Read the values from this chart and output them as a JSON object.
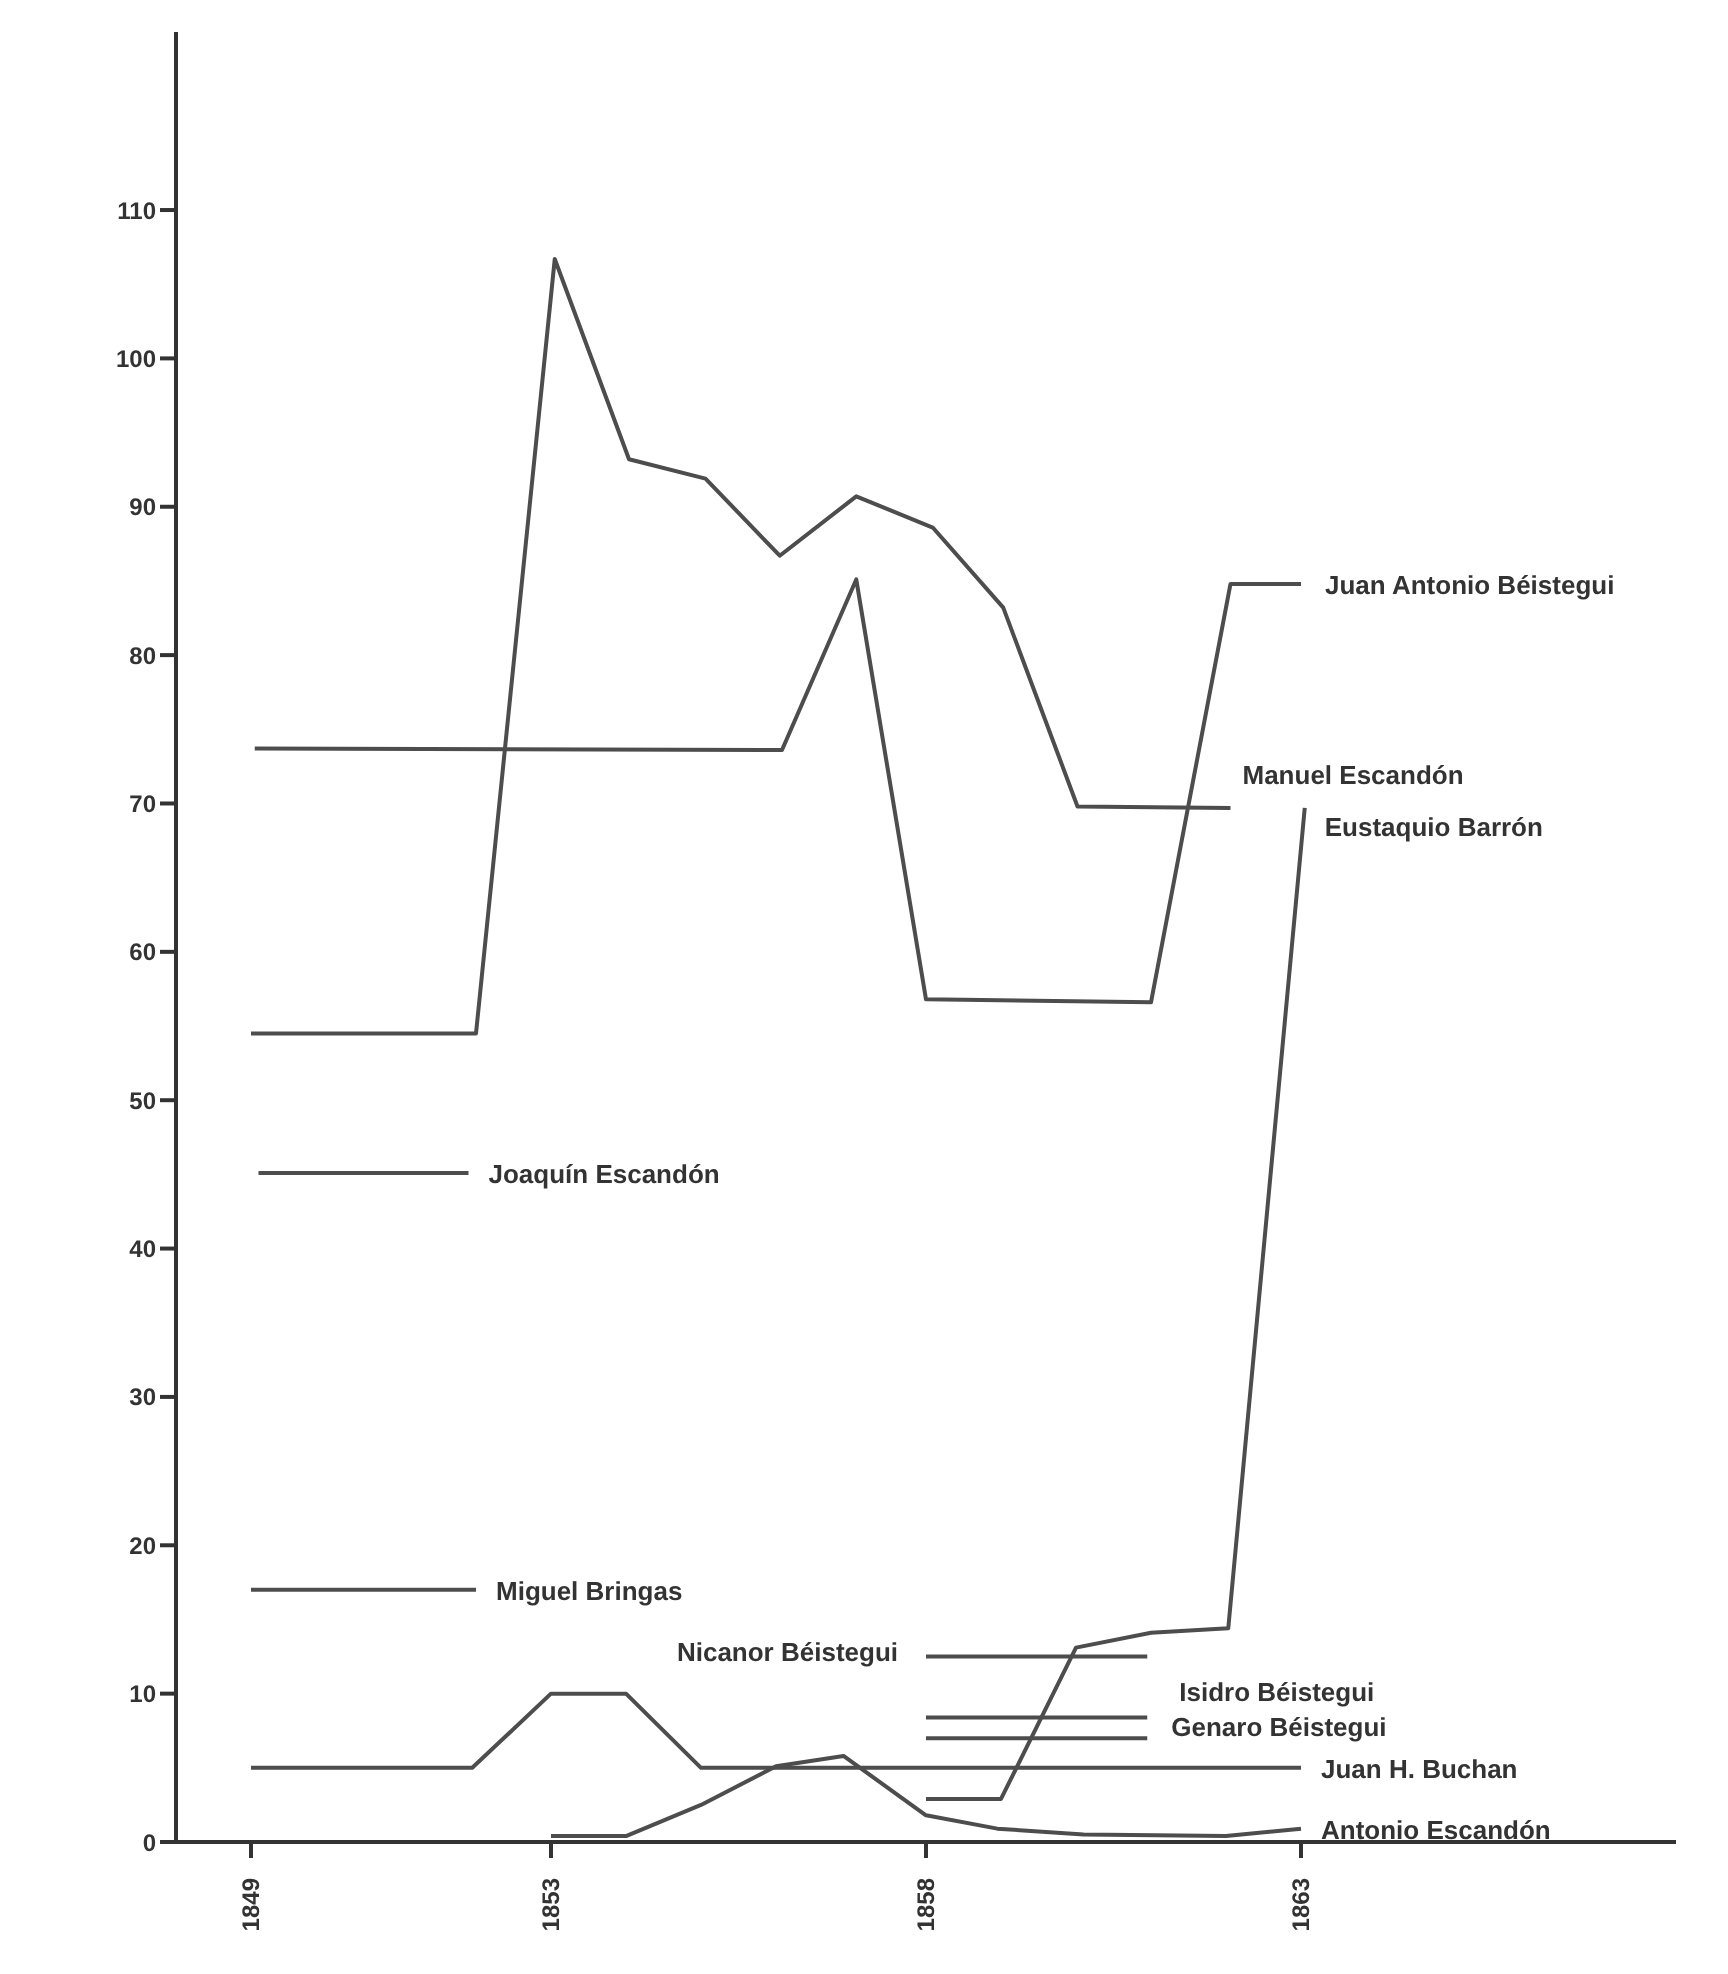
{
  "chart_data": {
    "type": "line",
    "xlim": [
      1848,
      1868
    ],
    "xticks": [
      1849,
      1853,
      1858,
      1863
    ],
    "ylim": [
      0,
      122
    ],
    "yticks": [
      0,
      10,
      20,
      30,
      40,
      50,
      60,
      70,
      80,
      90,
      100,
      110
    ],
    "marker": "none",
    "line_style": "solid",
    "series": [
      {
        "name": "Juan Antonio Béistegui",
        "color": "#4d4d4d",
        "x": [
          1849.05,
          1856.08,
          1857.07,
          1858.0,
          1861.0,
          1862.06,
          1863.0
        ],
        "values": [
          73.7,
          73.6,
          85.1,
          56.8,
          56.6,
          84.8,
          84.8
        ]
      },
      {
        "name": "Manuel Escandón",
        "color": "#4d4d4d",
        "x": [
          1849.0,
          1852.0,
          1853.05,
          1854.04,
          1855.06,
          1856.05,
          1857.07,
          1858.09,
          1859.03,
          1860.02,
          1862.06
        ],
        "values": [
          54.5,
          54.5,
          106.7,
          93.2,
          91.9,
          86.7,
          90.7,
          88.6,
          83.2,
          69.8,
          69.7
        ]
      },
      {
        "name": "Eustaquio Barrón",
        "color": "#4d4d4d",
        "x": [
          1858.0,
          1859.0,
          1860.0,
          1861.0,
          1862.03,
          1863.05
        ],
        "values": [
          2.9,
          2.9,
          13.1,
          14.1,
          14.4,
          69.7
        ]
      },
      {
        "name": "Joaquín Escandón",
        "color": "#4d4d4d",
        "x": [
          1849.1,
          1851.9
        ],
        "values": [
          45.1,
          45.1
        ]
      },
      {
        "name": "Miguel Bringas",
        "color": "#4d4d4d",
        "x": [
          1849.0,
          1852.0
        ],
        "values": [
          17,
          17
        ]
      },
      {
        "name": "Nicanor Béistegui",
        "color": "#4d4d4d",
        "x": [
          1858.0,
          1860.95
        ],
        "values": [
          12.5,
          12.5
        ]
      },
      {
        "name": "Isidro Béistegui",
        "color": "#4d4d4d",
        "x": [
          1858.0,
          1860.95
        ],
        "values": [
          8.4,
          8.4
        ]
      },
      {
        "name": "Genaro Béistegui",
        "color": "#4d4d4d",
        "x": [
          1858.0,
          1860.95
        ],
        "values": [
          7.0,
          7.0
        ]
      },
      {
        "name": "Juan H. Buchan",
        "color": "#4d4d4d",
        "x": [
          1849.0,
          1851.95,
          1853.0,
          1854.0,
          1855.0,
          1863.0
        ],
        "values": [
          5,
          5,
          10,
          10,
          5,
          5
        ]
      },
      {
        "name": "Antonio Escandón",
        "color": "#4d4d4d",
        "x": [
          1853.0,
          1854.0,
          1855.0,
          1856.0,
          1856.9,
          1858.0,
          1858.95,
          1860.1,
          1862.0,
          1863.0
        ],
        "values": [
          0.4,
          0.4,
          2.5,
          5.1,
          5.8,
          1.8,
          0.9,
          0.5,
          0.4,
          0.9
        ]
      }
    ]
  }
}
